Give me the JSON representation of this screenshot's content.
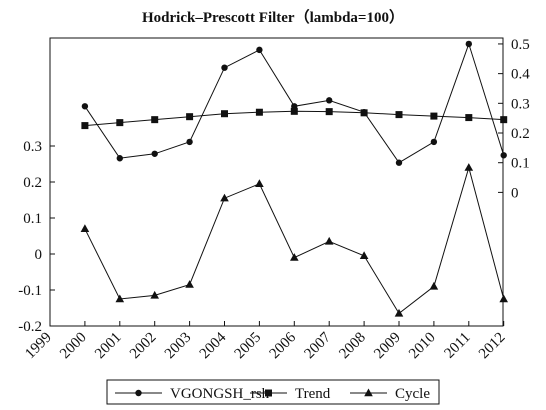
{
  "chart_data": {
    "type": "line",
    "title": "Hodrick–Prescott Filter（lambda=100）",
    "x": [
      "1999",
      "2000",
      "2001",
      "2002",
      "2003",
      "2004",
      "2005",
      "2006",
      "2007",
      "2008",
      "2009",
      "2010",
      "2011",
      "2012"
    ],
    "left_axis": {
      "ticks": [
        "-0.2",
        "-0.1",
        "0",
        "0.1",
        "0.2",
        "0.3"
      ],
      "range": [
        -0.2,
        0.6
      ]
    },
    "right_axis": {
      "ticks": [
        "0",
        "0.1",
        "0.2",
        "0.3",
        "0.4",
        "0.5"
      ],
      "range": [
        -0.45,
        0.52
      ]
    },
    "series": [
      {
        "name": "VGONGSH_rsh",
        "axis": "right",
        "marker": "circle",
        "x": [
          "2000",
          "2001",
          "2002",
          "2003",
          "2004",
          "2005",
          "2006",
          "2007",
          "2008",
          "2009",
          "2010",
          "2011",
          "2012"
        ],
        "values": [
          0.29,
          0.115,
          0.13,
          0.17,
          0.42,
          0.48,
          0.29,
          0.31,
          0.27,
          0.1,
          0.17,
          0.5,
          0.125
        ]
      },
      {
        "name": "Trend",
        "axis": "right",
        "marker": "square",
        "x": [
          "2000",
          "2001",
          "2002",
          "2003",
          "2004",
          "2005",
          "2006",
          "2007",
          "2008",
          "2009",
          "2010",
          "2011",
          "2012"
        ],
        "values": [
          0.225,
          0.235,
          0.245,
          0.255,
          0.265,
          0.27,
          0.273,
          0.272,
          0.268,
          0.262,
          0.257,
          0.252,
          0.245
        ]
      },
      {
        "name": "Cycle",
        "axis": "left",
        "marker": "triangle",
        "x": [
          "2000",
          "2001",
          "2002",
          "2003",
          "2004",
          "2005",
          "2006",
          "2007",
          "2008",
          "2009",
          "2010",
          "2011",
          "2012"
        ],
        "values": [
          0.07,
          -0.125,
          -0.115,
          -0.085,
          0.155,
          0.195,
          -0.01,
          0.035,
          -0.005,
          -0.165,
          -0.09,
          0.24,
          -0.125
        ]
      }
    ],
    "legend": {
      "position": "bottom",
      "items": [
        "VGONGSH_rsh",
        "Trend",
        "Cycle"
      ]
    },
    "grid": false
  }
}
